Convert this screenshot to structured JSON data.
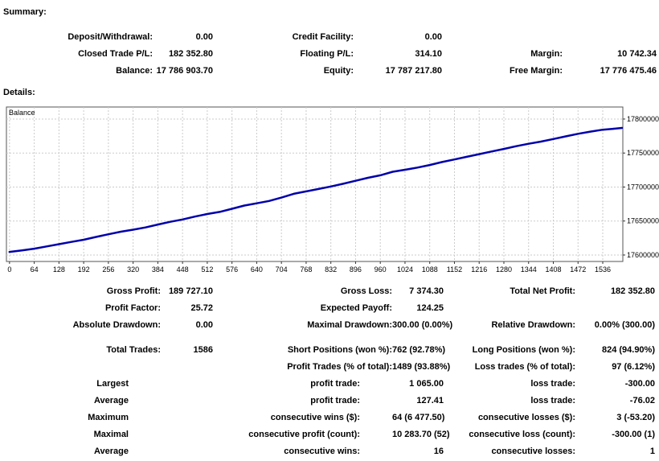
{
  "summary": {
    "heading": "Summary:",
    "rows": [
      {
        "c1l": "Deposit/Withdrawal:",
        "c1v": "0.00",
        "c2l": "Credit Facility:",
        "c2v": "0.00",
        "c3l": "",
        "c3v": ""
      },
      {
        "c1l": "Closed Trade P/L:",
        "c1v": "182 352.80",
        "c2l": "Floating P/L:",
        "c2v": "314.10",
        "c3l": "Margin:",
        "c3v": "10 742.34"
      },
      {
        "c1l": "Balance:",
        "c1v": "17 786 903.70",
        "c2l": "Equity:",
        "c2v": "17 787 217.80",
        "c3l": "Free Margin:",
        "c3v": "17 776 475.46"
      }
    ]
  },
  "details": {
    "heading": "Details:",
    "rows": [
      {
        "c1l": "Gross Profit:",
        "c1v": "189 727.10",
        "c2l": "Gross Loss:",
        "c2v": "7 374.30",
        "c3l": "Total Net Profit:",
        "c3v": "182 352.80"
      },
      {
        "c1l": "Profit Factor:",
        "c1v": "25.72",
        "c2l": "Expected Payoff:",
        "c2v": "124.25",
        "c3l": "",
        "c3v": ""
      },
      {
        "c1l": "Absolute Drawdown:",
        "c1v": "0.00",
        "c2l": "Maximal Drawdown:",
        "c2v": "300.00 (0.00%)",
        "c3l": "Relative Drawdown:",
        "c3v": "0.00% (300.00)"
      },
      {
        "c1l": "Total Trades:",
        "c1v": "1586",
        "c2l": "Short Positions (won %):",
        "c2v": "762 (92.78%)",
        "c3l": "Long Positions (won %):",
        "c3v": "824 (94.90%)"
      },
      {
        "c1l": "",
        "c1v": "",
        "c2l": "Profit Trades (% of total):",
        "c2v": "1489 (93.88%)",
        "c3l": "Loss trades (% of total):",
        "c3v": "97 (6.12%)"
      },
      {
        "c1l": "Largest",
        "c1v": "",
        "c2l": "profit trade:",
        "c2v": "1 065.00",
        "c3l": "loss trade:",
        "c3v": "-300.00"
      },
      {
        "c1l": "Average",
        "c1v": "",
        "c2l": "profit trade:",
        "c2v": "127.41",
        "c3l": "loss trade:",
        "c3v": "-76.02"
      },
      {
        "c1l": "Maximum",
        "c1v": "",
        "c2l": "consecutive wins ($):",
        "c2v": "64 (6 477.50)",
        "c3l": "consecutive losses ($):",
        "c3v": "3 (-53.20)"
      },
      {
        "c1l": "Maximal",
        "c1v": "",
        "c2l": "consecutive profit (count):",
        "c2v": "10 283.70 (52)",
        "c3l": "consecutive loss (count):",
        "c3v": "-300.00 (1)"
      },
      {
        "c1l": "Average",
        "c1v": "",
        "c2l": "consecutive wins:",
        "c2v": "16",
        "c3l": "consecutive losses:",
        "c3v": "1"
      }
    ]
  },
  "chart_data": {
    "type": "line",
    "title": "Balance",
    "xlabel": "",
    "ylabel": "",
    "x_ticks": [
      0,
      64,
      128,
      192,
      256,
      320,
      384,
      448,
      512,
      576,
      640,
      704,
      768,
      832,
      896,
      960,
      1024,
      1088,
      1152,
      1216,
      1280,
      1344,
      1408,
      1472,
      1536
    ],
    "y_ticks": [
      17600000,
      17650000,
      17700000,
      17750000,
      17800000
    ],
    "xlim": [
      -8,
      1588
    ],
    "ylim": [
      17590500,
      17817700
    ],
    "grid": "dashed",
    "legend_position": "top-left-inside",
    "line_color": "#0000AA",
    "grid_color": "#cbcbcb",
    "border_color": "#555555",
    "series": [
      {
        "name": "Balance",
        "points": [
          [
            0,
            17604551
          ],
          [
            32,
            17606800
          ],
          [
            64,
            17609300
          ],
          [
            96,
            17612600
          ],
          [
            128,
            17616000
          ],
          [
            160,
            17619200
          ],
          [
            192,
            17622500
          ],
          [
            224,
            17626600
          ],
          [
            256,
            17630500
          ],
          [
            288,
            17634300
          ],
          [
            320,
            17637200
          ],
          [
            352,
            17640500
          ],
          [
            384,
            17644800
          ],
          [
            416,
            17648800
          ],
          [
            448,
            17652300
          ],
          [
            480,
            17656500
          ],
          [
            512,
            17660300
          ],
          [
            544,
            17663400
          ],
          [
            576,
            17668000
          ],
          [
            608,
            17672800
          ],
          [
            640,
            17676000
          ],
          [
            672,
            17679500
          ],
          [
            704,
            17684500
          ],
          [
            736,
            17690000
          ],
          [
            768,
            17693600
          ],
          [
            800,
            17697100
          ],
          [
            832,
            17700800
          ],
          [
            864,
            17704800
          ],
          [
            896,
            17709200
          ],
          [
            928,
            17713600
          ],
          [
            960,
            17717200
          ],
          [
            992,
            17722500
          ],
          [
            1024,
            17725400
          ],
          [
            1056,
            17728600
          ],
          [
            1088,
            17732400
          ],
          [
            1120,
            17736800
          ],
          [
            1152,
            17740600
          ],
          [
            1184,
            17744500
          ],
          [
            1216,
            17748300
          ],
          [
            1248,
            17752300
          ],
          [
            1280,
            17756000
          ],
          [
            1312,
            17760100
          ],
          [
            1344,
            17763600
          ],
          [
            1376,
            17766800
          ],
          [
            1408,
            17770600
          ],
          [
            1440,
            17774500
          ],
          [
            1472,
            17778300
          ],
          [
            1504,
            17781500
          ],
          [
            1536,
            17784300
          ],
          [
            1568,
            17785900
          ],
          [
            1586,
            17786904
          ]
        ]
      }
    ]
  }
}
